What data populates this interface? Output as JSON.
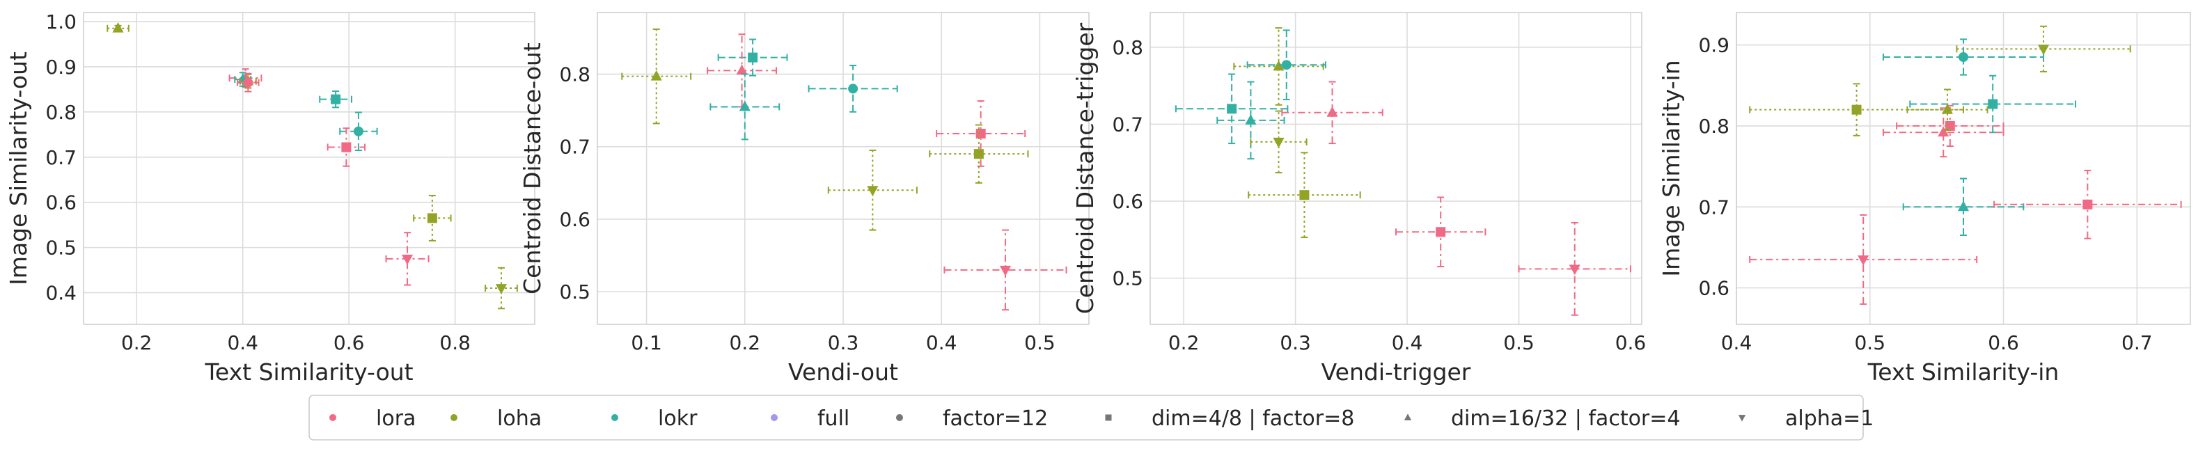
{
  "colors": {
    "lora": "#f06a85",
    "loha": "#93a326",
    "lokr": "#32b0a4",
    "full": "#a895f0",
    "marker": "#767676",
    "grid": "#dcdcdc",
    "spine": "#d0d0d0",
    "text": "#262626"
  },
  "legend": {
    "position": "bottom-center",
    "entries": [
      {
        "label": "lora",
        "marker": "dot",
        "color": "lora"
      },
      {
        "label": "loha",
        "marker": "dot",
        "color": "loha"
      },
      {
        "label": "lokr",
        "marker": "dot",
        "color": "lokr"
      },
      {
        "label": "full",
        "marker": "dot",
        "color": "full"
      },
      {
        "label": "factor=12",
        "marker": "dot",
        "color": "marker"
      },
      {
        "label": "dim=4/8 | factor=8",
        "marker": "square",
        "color": "marker"
      },
      {
        "label": "dim=16/32 | factor=4",
        "marker": "triangle-up",
        "color": "marker"
      },
      {
        "label": "alpha=1",
        "marker": "triangle-down",
        "color": "marker"
      }
    ]
  },
  "chart_data": [
    {
      "type": "scatter",
      "xlabel": "Text Similarity-out",
      "ylabel": "Image Similarity-out",
      "xlim": [
        0.1,
        0.95
      ],
      "ylim": [
        0.33,
        1.02
      ],
      "xticks": [
        "0.2",
        "0.4",
        "0.6",
        "0.8"
      ],
      "yticks": [
        "0.4",
        "0.5",
        "0.6",
        "0.7",
        "0.8",
        "0.9",
        "1.0"
      ],
      "grid": true,
      "points": [
        {
          "algo": "loha",
          "marker": "triangle-up",
          "x": 0.165,
          "y": 0.985,
          "xerr": 0.02,
          "yerr": 0.006
        },
        {
          "algo": "lora",
          "marker": "triangle-up",
          "x": 0.405,
          "y": 0.875,
          "xerr": 0.03,
          "yerr": 0.02
        },
        {
          "algo": "lokr",
          "marker": "triangle-up",
          "x": 0.4,
          "y": 0.872,
          "xerr": 0.015,
          "yerr": 0.015
        },
        {
          "algo": "loha",
          "marker": "triangle-up",
          "x": 0.41,
          "y": 0.868,
          "xerr": 0.015,
          "yerr": 0.015
        },
        {
          "algo": "lora",
          "marker": "dot",
          "x": 0.41,
          "y": 0.865,
          "xerr": 0.02,
          "yerr": 0.02
        },
        {
          "algo": "lokr",
          "marker": "square",
          "x": 0.575,
          "y": 0.828,
          "xerr": 0.03,
          "yerr": 0.018
        },
        {
          "algo": "lokr",
          "marker": "dot",
          "x": 0.618,
          "y": 0.757,
          "xerr": 0.035,
          "yerr": 0.042
        },
        {
          "algo": "lora",
          "marker": "square",
          "x": 0.595,
          "y": 0.722,
          "xerr": 0.035,
          "yerr": 0.042
        },
        {
          "algo": "loha",
          "marker": "square",
          "x": 0.757,
          "y": 0.565,
          "xerr": 0.035,
          "yerr": 0.05
        },
        {
          "algo": "lora",
          "marker": "triangle-down",
          "x": 0.71,
          "y": 0.475,
          "xerr": 0.04,
          "yerr": 0.058
        },
        {
          "algo": "loha",
          "marker": "triangle-down",
          "x": 0.887,
          "y": 0.41,
          "xerr": 0.03,
          "yerr": 0.045
        }
      ]
    },
    {
      "type": "scatter",
      "xlabel": "Vendi-out",
      "ylabel": "Centroid Distance-out",
      "xlim": [
        0.05,
        0.55
      ],
      "ylim": [
        0.455,
        0.885
      ],
      "xticks": [
        "0.1",
        "0.2",
        "0.3",
        "0.4",
        "0.5"
      ],
      "yticks": [
        "0.5",
        "0.6",
        "0.7",
        "0.8"
      ],
      "grid": true,
      "points": [
        {
          "algo": "loha",
          "marker": "triangle-up",
          "x": 0.11,
          "y": 0.797,
          "xerr": 0.035,
          "yerr": 0.065
        },
        {
          "algo": "lokr",
          "marker": "square",
          "x": 0.208,
          "y": 0.823,
          "xerr": 0.035,
          "yerr": 0.025
        },
        {
          "algo": "lora",
          "marker": "triangle-up",
          "x": 0.197,
          "y": 0.805,
          "xerr": 0.035,
          "yerr": 0.05
        },
        {
          "algo": "lokr",
          "marker": "triangle-up",
          "x": 0.2,
          "y": 0.755,
          "xerr": 0.035,
          "yerr": 0.045
        },
        {
          "algo": "lokr",
          "marker": "dot",
          "x": 0.31,
          "y": 0.78,
          "xerr": 0.045,
          "yerr": 0.032
        },
        {
          "algo": "lora",
          "marker": "square",
          "x": 0.44,
          "y": 0.718,
          "xerr": 0.045,
          "yerr": 0.045
        },
        {
          "algo": "loha",
          "marker": "square",
          "x": 0.438,
          "y": 0.69,
          "xerr": 0.05,
          "yerr": 0.04
        },
        {
          "algo": "loha",
          "marker": "triangle-down",
          "x": 0.33,
          "y": 0.64,
          "xerr": 0.045,
          "yerr": 0.055
        },
        {
          "algo": "lora",
          "marker": "triangle-down",
          "x": 0.465,
          "y": 0.53,
          "xerr": 0.062,
          "yerr": 0.055
        }
      ]
    },
    {
      "type": "scatter",
      "xlabel": "Vendi-trigger",
      "ylabel": "Centroid Distance-trigger",
      "xlim": [
        0.17,
        0.61
      ],
      "ylim": [
        0.44,
        0.845
      ],
      "xticks": [
        "0.2",
        "0.3",
        "0.4",
        "0.5",
        "0.6"
      ],
      "yticks": [
        "0.5",
        "0.6",
        "0.7",
        "0.8"
      ],
      "grid": true,
      "points": [
        {
          "algo": "loha",
          "marker": "triangle-up",
          "x": 0.285,
          "y": 0.775,
          "xerr": 0.04,
          "yerr": 0.05
        },
        {
          "algo": "lokr",
          "marker": "dot",
          "x": 0.292,
          "y": 0.777,
          "xerr": 0.035,
          "yerr": 0.045
        },
        {
          "algo": "lokr",
          "marker": "square",
          "x": 0.243,
          "y": 0.72,
          "xerr": 0.05,
          "yerr": 0.045
        },
        {
          "algo": "lokr",
          "marker": "triangle-up",
          "x": 0.26,
          "y": 0.705,
          "xerr": 0.03,
          "yerr": 0.05
        },
        {
          "algo": "lora",
          "marker": "triangle-up",
          "x": 0.333,
          "y": 0.715,
          "xerr": 0.045,
          "yerr": 0.04
        },
        {
          "algo": "loha",
          "marker": "triangle-down",
          "x": 0.285,
          "y": 0.677,
          "xerr": 0.025,
          "yerr": 0.04
        },
        {
          "algo": "loha",
          "marker": "square",
          "x": 0.308,
          "y": 0.608,
          "xerr": 0.05,
          "yerr": 0.055
        },
        {
          "algo": "lora",
          "marker": "square",
          "x": 0.43,
          "y": 0.56,
          "xerr": 0.04,
          "yerr": 0.045
        },
        {
          "algo": "lora",
          "marker": "triangle-down",
          "x": 0.55,
          "y": 0.512,
          "xerr": 0.05,
          "yerr": 0.06
        }
      ]
    },
    {
      "type": "scatter",
      "xlabel": "Text Similarity-in",
      "ylabel": "Image Similarity-in",
      "xlim": [
        0.4,
        0.74
      ],
      "ylim": [
        0.555,
        0.94
      ],
      "xticks": [
        "0.4",
        "0.5",
        "0.6",
        "0.7"
      ],
      "yticks": [
        "0.6",
        "0.7",
        "0.8",
        "0.9"
      ],
      "grid": true,
      "points": [
        {
          "algo": "loha",
          "marker": "triangle-down",
          "x": 0.63,
          "y": 0.895,
          "xerr": 0.065,
          "yerr": 0.028
        },
        {
          "algo": "lokr",
          "marker": "dot",
          "x": 0.57,
          "y": 0.885,
          "xerr": 0.06,
          "yerr": 0.022
        },
        {
          "algo": "loha",
          "marker": "square",
          "x": 0.49,
          "y": 0.82,
          "xerr": 0.08,
          "yerr": 0.032
        },
        {
          "algo": "lokr",
          "marker": "square",
          "x": 0.592,
          "y": 0.827,
          "xerr": 0.062,
          "yerr": 0.035
        },
        {
          "algo": "lora",
          "marker": "square",
          "x": 0.56,
          "y": 0.8,
          "xerr": 0.04,
          "yerr": 0.025
        },
        {
          "algo": "lora",
          "marker": "triangle-up",
          "x": 0.555,
          "y": 0.792,
          "xerr": 0.045,
          "yerr": 0.03
        },
        {
          "algo": "loha",
          "marker": "triangle-up",
          "x": 0.558,
          "y": 0.82,
          "xerr": 0.03,
          "yerr": 0.025
        },
        {
          "algo": "lokr",
          "marker": "triangle-up",
          "x": 0.57,
          "y": 0.7,
          "xerr": 0.045,
          "yerr": 0.035
        },
        {
          "algo": "lora",
          "marker": "square",
          "x": 0.663,
          "y": 0.703,
          "xerr": 0.07,
          "yerr": 0.042
        },
        {
          "algo": "lora",
          "marker": "triangle-down",
          "x": 0.495,
          "y": 0.635,
          "xerr": 0.085,
          "yerr": 0.055
        }
      ]
    }
  ]
}
